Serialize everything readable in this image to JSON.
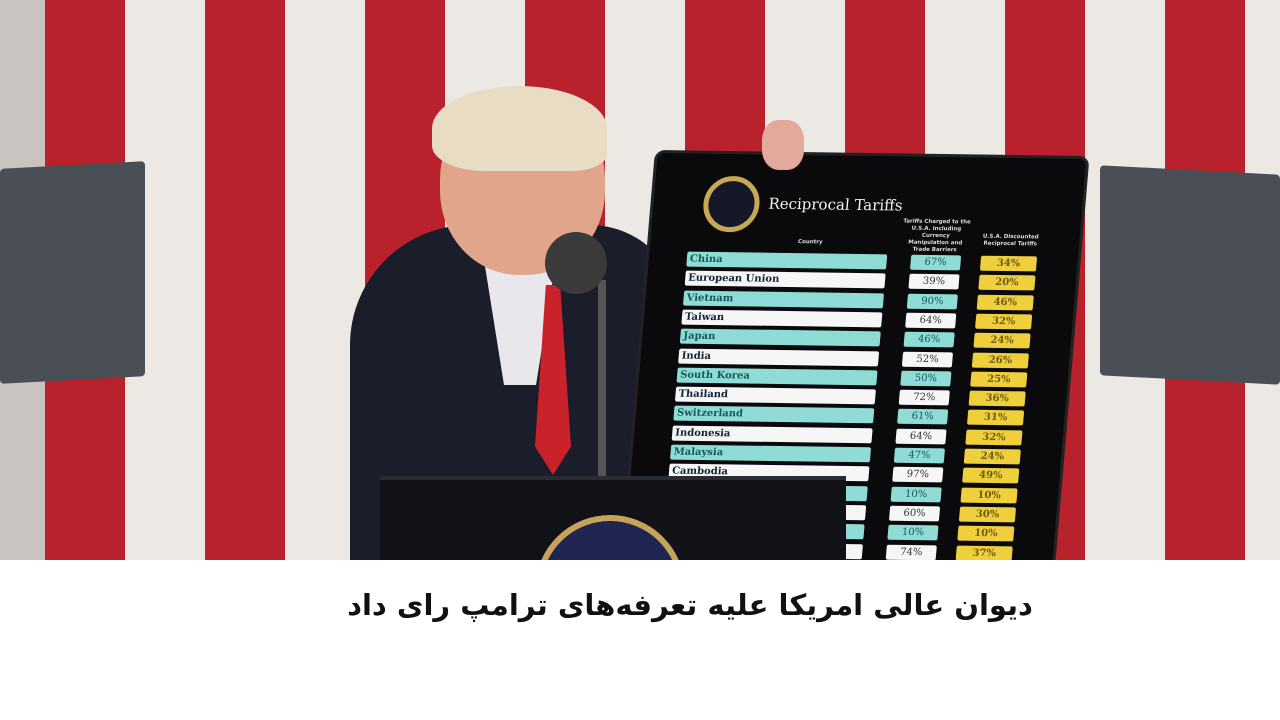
{
  "caption": "دیوان عالی امریکا علیه تعرفه‌های ترامپ رای داد",
  "board": {
    "title": "Reciprocal Tariffs",
    "column_headers": [
      "Country",
      "Tariffs Charged to the U.S.A. Including Currency Manipulation and Trade Barriers",
      "U.S.A. Discounted Reciprocal Tariffs"
    ],
    "rows": [
      {
        "country": "China",
        "charged": "67%",
        "reciprocal": "34%"
      },
      {
        "country": "European Union",
        "charged": "39%",
        "reciprocal": "20%"
      },
      {
        "country": "Vietnam",
        "charged": "90%",
        "reciprocal": "46%"
      },
      {
        "country": "Taiwan",
        "charged": "64%",
        "reciprocal": "32%"
      },
      {
        "country": "Japan",
        "charged": "46%",
        "reciprocal": "24%"
      },
      {
        "country": "India",
        "charged": "52%",
        "reciprocal": "26%"
      },
      {
        "country": "South Korea",
        "charged": "50%",
        "reciprocal": "25%"
      },
      {
        "country": "Thailand",
        "charged": "72%",
        "reciprocal": "36%"
      },
      {
        "country": "Switzerland",
        "charged": "61%",
        "reciprocal": "31%"
      },
      {
        "country": "Indonesia",
        "charged": "64%",
        "reciprocal": "32%"
      },
      {
        "country": "Malaysia",
        "charged": "47%",
        "reciprocal": "24%"
      },
      {
        "country": "Cambodia",
        "charged": "97%",
        "reciprocal": "49%"
      },
      {
        "country": "",
        "charged": "10%",
        "reciprocal": "10%"
      },
      {
        "country": "",
        "charged": "60%",
        "reciprocal": "30%"
      },
      {
        "country": "",
        "charged": "10%",
        "reciprocal": "10%"
      },
      {
        "country": "",
        "charged": "74%",
        "reciprocal": "37%"
      }
    ]
  },
  "colors": {
    "flag_red": "#b9222c",
    "flag_white": "#ece8e4",
    "teal_row": "#8fdcd6",
    "yellow_cell": "#f0cf3c"
  }
}
